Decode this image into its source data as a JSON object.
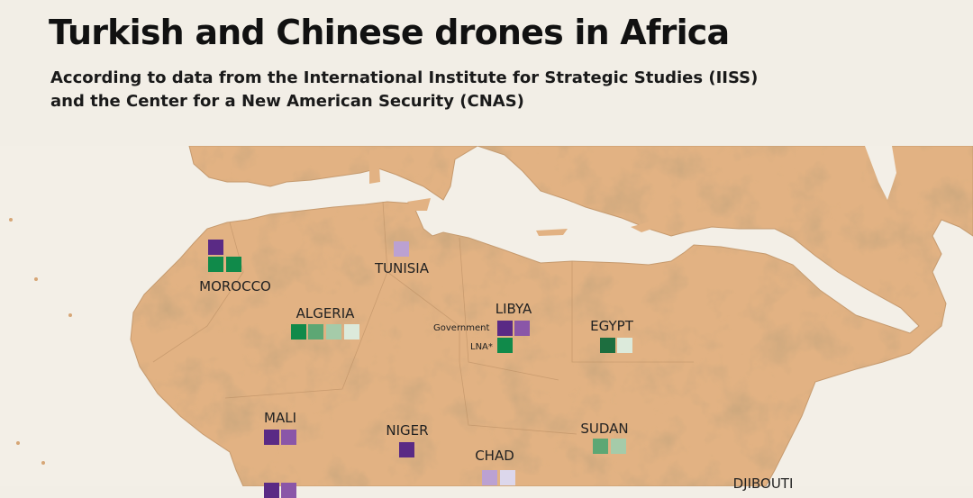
{
  "header": {
    "title": "Turkish and Chinese drones in Africa",
    "subtitle_line1": "According to data from the International Institute for Strategic Studies (IISS)",
    "subtitle_line2": "and the Center for a New American Security (CNAS)"
  },
  "colors": {
    "land": "#e2b283",
    "sea": "#f3efe7",
    "relief": "#b9875a",
    "purple_dark": "#5a2a85",
    "purple_mid": "#8a56a8",
    "purple_light": "#bba1d2",
    "lavender": "#dcd7ec",
    "green_dark": "#1d6e3f",
    "green": "#108a4a",
    "green_mid": "#5da774",
    "green_light": "#a5cba9",
    "green_pale": "#dceadb"
  },
  "countries": {
    "morocco": {
      "name": "MOROCCO",
      "markers": [
        "purple_dark",
        "green",
        "green"
      ]
    },
    "tunisia": {
      "name": "TUNISIA",
      "markers": [
        "purple_light"
      ]
    },
    "algeria": {
      "name": "ALGERIA",
      "markers": [
        "green",
        "green_mid",
        "green_light",
        "green_pale"
      ]
    },
    "libya": {
      "name": "LIBYA",
      "government_label": "Government",
      "government_markers": [
        "purple_dark",
        "purple_mid"
      ],
      "lna_label": "LNA*",
      "lna_markers": [
        "green"
      ]
    },
    "egypt": {
      "name": "EGYPT",
      "markers": [
        "green_dark",
        "green_pale"
      ]
    },
    "mali": {
      "name": "MALI",
      "markers": [
        "purple_dark",
        "purple_mid"
      ]
    },
    "niger": {
      "name": "NIGER",
      "markers": [
        "purple_dark"
      ]
    },
    "sudan": {
      "name": "SUDAN",
      "markers": [
        "green_mid",
        "green_light"
      ]
    },
    "chad": {
      "name": "CHAD",
      "markers": [
        "purple_light",
        "lavender"
      ]
    },
    "djibouti": {
      "name": "DJIBOUTI"
    },
    "cutoff": {
      "markers": [
        "purple_dark",
        "purple_mid"
      ]
    }
  }
}
